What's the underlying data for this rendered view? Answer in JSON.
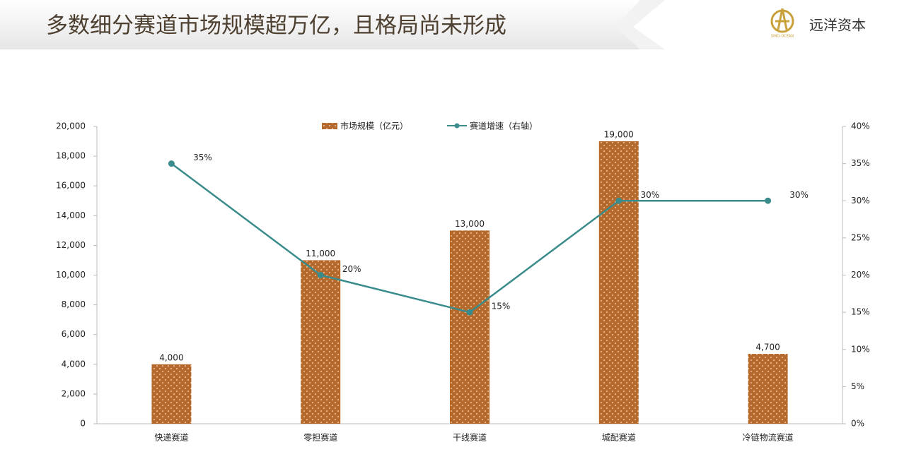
{
  "header": {
    "title": "多数细分赛道市场规模超万亿，且格局尚未形成",
    "logo_text": "远洋资本",
    "logo_caption": "SINO-OCEAN"
  },
  "chart_data": {
    "type": "bar",
    "categories": [
      "快递赛道",
      "零担赛道",
      "干线赛道",
      "城配赛道",
      "冷链物流赛道"
    ],
    "series": [
      {
        "name": "市场规模（亿元）",
        "type": "bar",
        "color": "#b5692b",
        "values": [
          4000,
          11000,
          13000,
          19000,
          4700
        ],
        "value_labels": [
          "4,000",
          "11,000",
          "13,000",
          "19,000",
          "4,700"
        ]
      },
      {
        "name": "赛道增速（右轴）",
        "type": "line",
        "axis": "y2",
        "color": "#3a8c8c",
        "values": [
          35,
          20,
          15,
          30,
          30
        ],
        "value_labels": [
          "35%",
          "20%",
          "15%",
          "30%",
          "30%"
        ]
      }
    ],
    "ylim": [
      0,
      20000
    ],
    "yticks": [
      0,
      {
        "value": 2000,
        "label": "2,000"
      },
      {
        "value": 4000,
        "label": "4,000"
      },
      {
        "value": 6000,
        "label": "6,000"
      },
      {
        "value": 8000,
        "label": "8,000"
      },
      {
        "value": 10000,
        "label": "10,000"
      },
      {
        "value": 12000,
        "label": "12,000"
      },
      {
        "value": 14000,
        "label": "14,000"
      },
      {
        "value": 16000,
        "label": "16,000"
      },
      {
        "value": 18000,
        "label": "18,000"
      },
      {
        "value": 20000,
        "label": "20,000"
      }
    ],
    "y2lim": [
      0,
      40
    ],
    "y2ticks": [
      {
        "value": 0,
        "label": "0%"
      },
      {
        "value": 5,
        "label": "5%"
      },
      {
        "value": 10,
        "label": "10%"
      },
      {
        "value": 15,
        "label": "15%"
      },
      {
        "value": 20,
        "label": "20%"
      },
      {
        "value": 25,
        "label": "25%"
      },
      {
        "value": 30,
        "label": "30%"
      },
      {
        "value": 35,
        "label": "35%"
      },
      {
        "value": 40,
        "label": "40%"
      }
    ],
    "legend": "top"
  }
}
